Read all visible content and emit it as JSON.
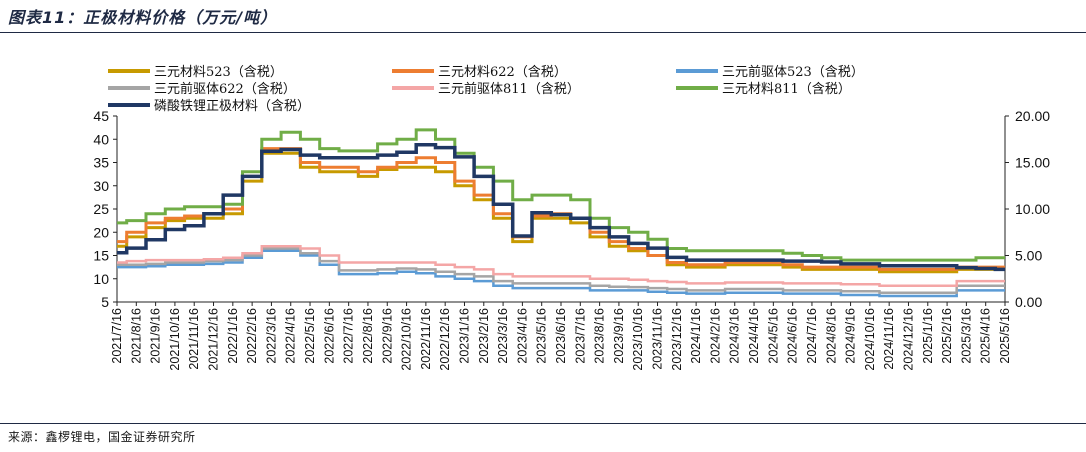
{
  "figure": {
    "title": "图表11：正极材料价格（万元/吨）",
    "source": "来源：鑫椤锂电，国金证券研究所"
  },
  "chart_data": {
    "type": "line",
    "title": "正极材料价格（万元/吨）",
    "y_left": {
      "min": 5,
      "max": 45,
      "step": 5,
      "ticks": [
        "5",
        "10",
        "15",
        "20",
        "25",
        "30",
        "35",
        "40",
        "45"
      ]
    },
    "y_right": {
      "min": 0,
      "max": 20,
      "step": 5,
      "ticks": [
        "0.00",
        "5.00",
        "10.00",
        "15.00",
        "20.00"
      ]
    },
    "grid": false,
    "legend_position": "top",
    "x": [
      "2021/7/16",
      "2021/8/16",
      "2021/9/16",
      "2021/10/16",
      "2021/11/16",
      "2021/12/16",
      "2022/1/16",
      "2022/2/16",
      "2022/3/16",
      "2022/4/16",
      "2022/5/16",
      "2022/6/16",
      "2022/7/16",
      "2022/8/16",
      "2022/9/16",
      "2022/10/16",
      "2022/11/16",
      "2022/12/16",
      "2023/1/16",
      "2023/2/16",
      "2023/3/16",
      "2023/4/16",
      "2023/5/16",
      "2023/6/16",
      "2023/7/16",
      "2023/8/16",
      "2023/9/16",
      "2023/10/16",
      "2023/11/16",
      "2023/12/16",
      "2024/1/16",
      "2024/2/16",
      "2024/3/16",
      "2024/4/16",
      "2024/5/16",
      "2024/6/16",
      "2024/7/16",
      "2024/8/16",
      "2024/9/16",
      "2024/10/16",
      "2024/11/16",
      "2024/12/16",
      "2025/1/16",
      "2025/2/16",
      "2025/3/16",
      "2025/4/16",
      "2025/5/16"
    ],
    "series": [
      {
        "name": "三元材料523（含税）",
        "axis": "left",
        "color": "#c79a00",
        "width": 3,
        "values": [
          17,
          19,
          21,
          22.5,
          23,
          23,
          24,
          31,
          37,
          37,
          34,
          33,
          33,
          32,
          33.5,
          34,
          34,
          33,
          30,
          27,
          23,
          18,
          23,
          23,
          22,
          19,
          17,
          16,
          15,
          13,
          12.5,
          12.5,
          13,
          13,
          13,
          12.5,
          12,
          12,
          12,
          12,
          11.5,
          11.5,
          11.5,
          11.5,
          12,
          12,
          12
        ]
      },
      {
        "name": "三元材料622（含税）",
        "axis": "left",
        "color": "#ed7d31",
        "width": 3,
        "values": [
          18,
          20,
          22,
          23,
          23.5,
          24,
          25,
          32,
          38,
          38,
          35,
          34,
          34,
          33,
          34,
          35,
          36,
          35,
          31,
          28,
          24,
          19,
          23.5,
          24,
          23,
          20,
          18,
          16.5,
          15,
          13.5,
          13,
          13,
          13.5,
          13.5,
          13.5,
          13,
          12.5,
          12.5,
          12.5,
          12.5,
          12,
          12,
          12,
          12,
          12.5,
          12.5,
          12.5
        ]
      },
      {
        "name": "三元前驱体523（含税）",
        "axis": "left",
        "color": "#5b9bd5",
        "width": 2.5,
        "values": [
          12.5,
          12.5,
          12.7,
          13,
          13,
          13.2,
          13.5,
          14.5,
          16,
          16,
          15,
          13,
          11,
          11,
          11.2,
          11.5,
          11.2,
          10.5,
          10,
          9.5,
          8.5,
          8,
          8,
          8,
          8,
          7.5,
          7.5,
          7.5,
          7.2,
          7,
          6.8,
          6.8,
          7,
          7,
          7,
          6.8,
          6.8,
          6.8,
          6.5,
          6.5,
          6.3,
          6.3,
          6.3,
          6.3,
          7.5,
          7.5,
          7.5
        ]
      },
      {
        "name": "三元前驱体622（含税）",
        "axis": "left",
        "color": "#a5a5a5",
        "width": 2.5,
        "values": [
          13,
          13,
          13.2,
          13.5,
          13.5,
          13.8,
          14,
          15,
          16.5,
          16.5,
          15.5,
          13.8,
          11.8,
          11.8,
          12,
          12.2,
          12,
          11.5,
          11,
          10.5,
          9.5,
          9,
          9,
          9,
          9,
          8.5,
          8.3,
          8.2,
          8,
          7.8,
          7.5,
          7.5,
          7.8,
          7.8,
          7.8,
          7.5,
          7.5,
          7.5,
          7.3,
          7.3,
          7,
          7,
          7,
          7,
          8.5,
          8.5,
          8.5
        ]
      },
      {
        "name": "三元前驱体811（含税）",
        "axis": "left",
        "color": "#f4a6a6",
        "width": 2.5,
        "values": [
          13.5,
          13.8,
          14,
          14,
          14,
          14.2,
          14.5,
          15.5,
          17,
          17,
          16.5,
          15,
          13.5,
          13.5,
          13.5,
          13.5,
          13.5,
          13,
          12.5,
          12,
          11,
          10.5,
          10.5,
          10.5,
          10.5,
          10,
          10,
          9.8,
          9.5,
          9.3,
          9,
          9,
          9.2,
          9.2,
          9.2,
          9,
          9,
          9,
          8.8,
          8.8,
          8.5,
          8.5,
          8.5,
          8.5,
          9.5,
          9.5,
          9.5
        ]
      },
      {
        "name": "三元材料811（含税）",
        "axis": "left",
        "color": "#70ad47",
        "width": 3,
        "values": [
          22,
          22.5,
          24,
          25,
          25.5,
          25.5,
          26,
          33,
          40,
          41.5,
          40,
          38,
          37.5,
          37.5,
          39,
          40,
          42,
          40,
          37,
          34,
          31,
          27,
          28,
          28,
          27,
          23,
          21,
          20,
          18.5,
          16.5,
          16,
          16,
          16,
          16,
          16,
          15.5,
          15,
          14.5,
          14,
          14,
          14,
          14,
          14,
          14,
          14,
          14.5,
          14.5
        ]
      },
      {
        "name": "磷酸铁锂正极材料（含税）",
        "axis": "right",
        "color": "#203864",
        "width": 3.5,
        "values": [
          5.3,
          5.8,
          6.7,
          7.8,
          8.2,
          9.5,
          11.5,
          13.5,
          16.2,
          16.4,
          15.8,
          15.5,
          15.5,
          15.5,
          15.8,
          16.1,
          16.9,
          16.6,
          15.6,
          13.5,
          10.5,
          7.1,
          9.6,
          9.4,
          9,
          8,
          7,
          6.3,
          5.8,
          4.8,
          4.5,
          4.5,
          4.5,
          4.5,
          4.5,
          4.4,
          4.4,
          4.3,
          4.1,
          4.1,
          3.9,
          3.9,
          3.9,
          3.9,
          3.7,
          3.6,
          3.5
        ]
      }
    ]
  }
}
